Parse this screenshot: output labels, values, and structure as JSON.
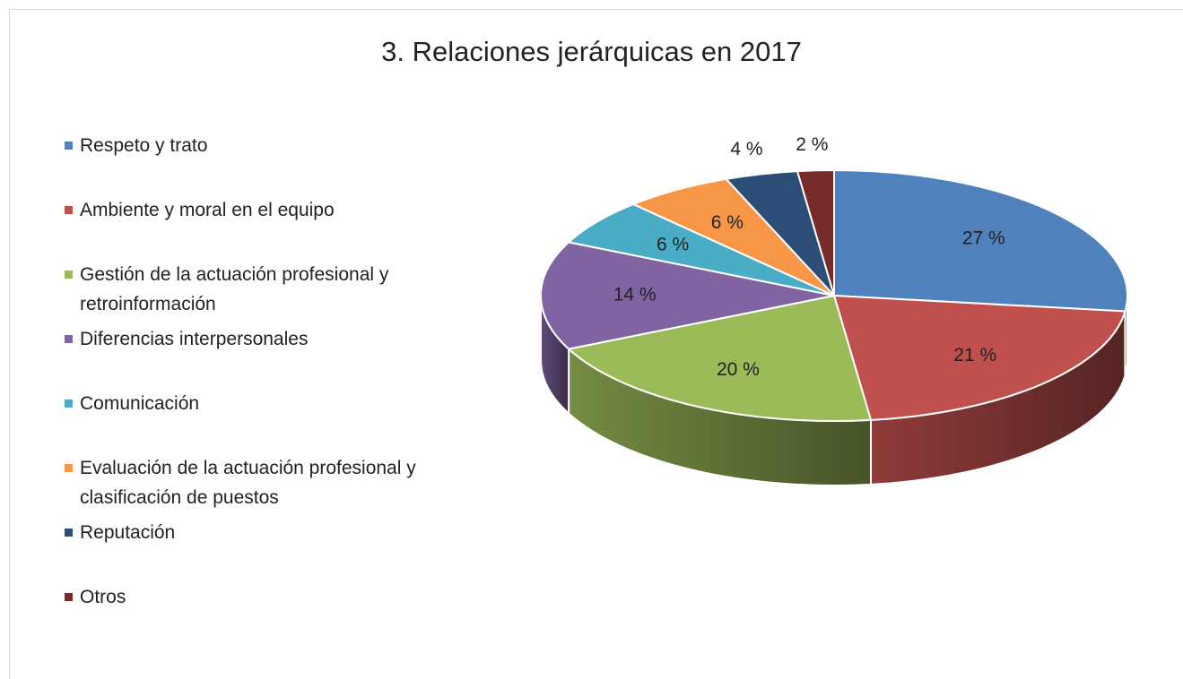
{
  "chart_data": {
    "type": "pie",
    "title": "3. Relaciones jerárquicas en 2017",
    "categories": [
      "Respeto y trato",
      "Ambiente y moral en el equipo",
      "Gestión de la actuación profesional y retroinformación",
      "Diferencias interpersonales",
      "Comunicación",
      "Evaluación de la actuación profesional y clasificación de puestos",
      "Reputación",
      "Otros"
    ],
    "values": [
      27,
      21,
      20,
      14,
      6,
      6,
      4,
      2
    ],
    "value_labels": [
      "27 %",
      "21 %",
      "20 %",
      "14 %",
      "6 %",
      "6 %",
      "4 %",
      "2 %"
    ],
    "colors": [
      "#4f81bd",
      "#c0504d",
      "#9bbb59",
      "#8064a2",
      "#4bacc6",
      "#f79646",
      "#2c4d75",
      "#772c2a"
    ],
    "legend": "left"
  }
}
